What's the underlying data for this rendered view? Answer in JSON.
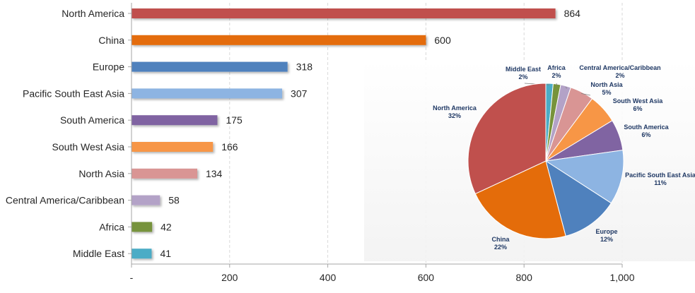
{
  "chart_data": [
    {
      "type": "bar",
      "orientation": "horizontal",
      "categories": [
        "North America",
        "China",
        "Europe",
        "Pacific South East Asia",
        "South America",
        "South West Asia",
        "North Asia",
        "Central America/Caribbean",
        "Africa",
        "Middle East"
      ],
      "values": [
        864,
        600,
        318,
        307,
        175,
        166,
        134,
        58,
        42,
        41
      ],
      "data_labels": [
        "864",
        "600",
        "318",
        "307",
        "175",
        "166",
        "134",
        "58",
        "42",
        "41"
      ],
      "colors": [
        "#C0504D",
        "#E46C0A",
        "#4F81BD",
        "#8DB4E2",
        "#8064A2",
        "#F79646",
        "#D99594",
        "#B3A2C7",
        "#77933C",
        "#4BACC6"
      ],
      "xlim": [
        0,
        1000
      ],
      "x_ticks": [
        0,
        200,
        400,
        600,
        800,
        1000
      ],
      "x_tick_labels": [
        "-",
        "200",
        "400",
        "600",
        "800",
        "1,000"
      ],
      "grid": true
    },
    {
      "type": "pie",
      "labels": [
        "Middle East",
        "Africa",
        "Central America/Caribbean",
        "North Asia",
        "South West Asia",
        "South America",
        "Pacific South East Asia",
        "Europe",
        "China",
        "North America"
      ],
      "values": [
        41,
        42,
        58,
        134,
        166,
        175,
        307,
        318,
        600,
        864
      ],
      "percent_labels": [
        "2%",
        "2%",
        "2%",
        "5%",
        "6%",
        "6%",
        "11%",
        "12%",
        "22%",
        "32%"
      ],
      "colors": [
        "#4BACC6",
        "#77933C",
        "#B3A2C7",
        "#D99594",
        "#F79646",
        "#8064A2",
        "#8DB4E2",
        "#4F81BD",
        "#E46C0A",
        "#C0504D"
      ],
      "start_angle_deg": 0,
      "direction": "clockwise"
    }
  ]
}
